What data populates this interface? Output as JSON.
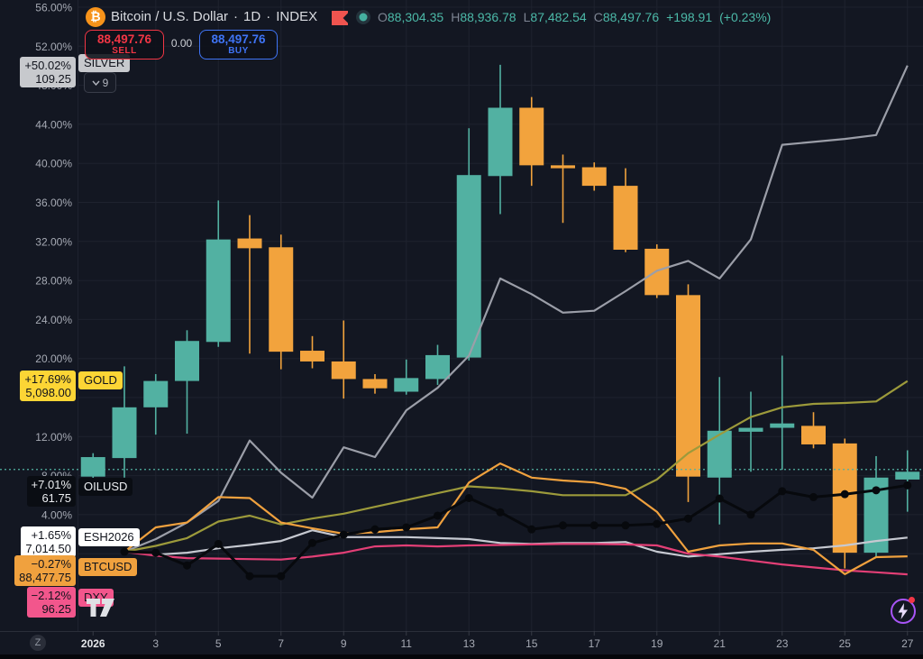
{
  "header": {
    "logo_glyph": "₿",
    "symbol_title": "Bitcoin / U.S. Dollar",
    "separator": "·",
    "interval": "1D",
    "exchange": "INDEX",
    "ohlc": [
      {
        "label": "O",
        "value": "88,304.35"
      },
      {
        "label": "H",
        "value": "88,936.78"
      },
      {
        "label": "L",
        "value": "87,482.54"
      },
      {
        "label": "C",
        "value": "88,497.76"
      }
    ],
    "change": "+198.91",
    "change_pct": "(+0.23%)"
  },
  "trade_panel": {
    "sell_price": "88,497.76",
    "sell_label": "SELL",
    "spread": "0.00",
    "buy_price": "88,497.76",
    "buy_label": "BUY"
  },
  "compare_selector": {
    "count": "9"
  },
  "badges": [
    {
      "ticker": "SILVER",
      "pct_text": "+50.02%",
      "value_text": "109.25",
      "color": "#c7c9cd",
      "text_color": "#10131c"
    },
    {
      "ticker": "GOLD",
      "pct_text": "+17.69%",
      "value_text": "5,098.00",
      "color": "#fcd535",
      "text_color": "#10131c"
    },
    {
      "ticker": "OILUSD",
      "pct_text": "+7.01%",
      "value_text": "61.75",
      "color": "#0a0d13",
      "text_color": "#eceef1"
    },
    {
      "ticker": "ESH2026",
      "pct_text": "+1.65%",
      "value_text": "7,014.50",
      "color": "#ffffff",
      "text_color": "#10131c"
    },
    {
      "ticker": "BTCUSD",
      "pct_text": "−0.27%",
      "value_text": "88,477.75",
      "color": "#f0a13e",
      "text_color": "#10131c"
    },
    {
      "ticker": "DXY",
      "pct_text": "−2.12%",
      "value_text": "96.25",
      "color": "#f2568c",
      "text_color": "#10131c"
    }
  ],
  "misc": {
    "zoom_reset": "Z"
  },
  "chart_data": {
    "type": "candlestick+lines",
    "title": "Bitcoin / U.S. Dollar, 1D, INDEX, percent scale",
    "colors": {
      "up": "#52b1a2",
      "down": "#f2a33d",
      "grid": "#1e222e",
      "axis_text": "#a6aab4",
      "axis_text_bold": "#e3e5e9",
      "price_line": "#52b1a2"
    },
    "y_axis": {
      "unit": "%",
      "min": -8,
      "max": 56.7,
      "labels": [
        {
          "p": 56,
          "t": "56.00%"
        },
        {
          "p": 52,
          "t": "52.00%"
        },
        {
          "p": 48,
          "t": "48.00%"
        },
        {
          "p": 44,
          "t": "44.00%"
        },
        {
          "p": 40,
          "t": "40.00%"
        },
        {
          "p": 36,
          "t": "36.00%"
        },
        {
          "p": 32,
          "t": "32.00%"
        },
        {
          "p": 28,
          "t": "28.00%"
        },
        {
          "p": 24,
          "t": "24.00%"
        },
        {
          "p": 20,
          "t": "20.00%"
        },
        {
          "p": 12,
          "t": "12.00%"
        },
        {
          "p": 8,
          "t": "8.00%"
        },
        {
          "p": 4,
          "t": "4.00%"
        }
      ]
    },
    "x_axis": {
      "labels": [
        {
          "d": 1,
          "t": "2026",
          "bold": true
        },
        {
          "d": 3,
          "t": "3"
        },
        {
          "d": 5,
          "t": "5"
        },
        {
          "d": 7,
          "t": "7"
        },
        {
          "d": 9,
          "t": "9"
        },
        {
          "d": 11,
          "t": "11"
        },
        {
          "d": 13,
          "t": "13"
        },
        {
          "d": 15,
          "t": "15"
        },
        {
          "d": 17,
          "t": "17"
        },
        {
          "d": 19,
          "t": "19"
        },
        {
          "d": 21,
          "t": "21"
        },
        {
          "d": 23,
          "t": "23"
        },
        {
          "d": 25,
          "t": "25"
        },
        {
          "d": 27,
          "t": "27"
        }
      ]
    },
    "grid": {
      "h_pct": [
        56,
        52,
        48,
        44,
        40,
        36,
        32,
        28,
        24,
        20,
        16,
        12,
        8,
        4,
        0,
        -4
      ],
      "v_days": [
        3,
        5,
        7,
        9,
        11,
        13,
        15,
        17,
        19,
        21,
        23,
        25,
        27
      ]
    },
    "price_line": {
      "pct": 8.63,
      "style": "dotted"
    },
    "candles": [
      {
        "d": 1,
        "o": 7.9,
        "h": 10.3,
        "l": 7.2,
        "c": 9.9
      },
      {
        "d": 2,
        "o": 9.8,
        "h": 19.2,
        "l": 7.8,
        "c": 15.0
      },
      {
        "d": 3,
        "o": 15.0,
        "h": 18.4,
        "l": 12.2,
        "c": 17.7
      },
      {
        "d": 4,
        "o": 17.7,
        "h": 22.9,
        "l": 12.3,
        "c": 21.8
      },
      {
        "d": 5,
        "o": 21.7,
        "h": 36.2,
        "l": 21.2,
        "c": 32.2
      },
      {
        "d": 6,
        "o": 32.3,
        "h": 34.7,
        "l": 20.5,
        "c": 31.3
      },
      {
        "d": 7,
        "o": 31.4,
        "h": 32.7,
        "l": 18.9,
        "c": 20.7
      },
      {
        "d": 8,
        "o": 20.8,
        "h": 22.3,
        "l": 19.0,
        "c": 19.7
      },
      {
        "d": 9,
        "o": 19.7,
        "h": 23.9,
        "l": 15.9,
        "c": 17.9
      },
      {
        "d": 10,
        "o": 17.9,
        "h": 18.4,
        "l": 16.4,
        "c": 16.95
      },
      {
        "d": 11,
        "o": 16.6,
        "h": 19.9,
        "l": 16.3,
        "c": 18.0
      },
      {
        "d": 12,
        "o": 17.9,
        "h": 21.4,
        "l": 17.3,
        "c": 20.35
      },
      {
        "d": 13,
        "o": 20.1,
        "h": 43.6,
        "l": 19.8,
        "c": 38.8
      },
      {
        "d": 14,
        "o": 38.7,
        "h": 50.1,
        "l": 34.8,
        "c": 45.7
      },
      {
        "d": 15,
        "o": 45.7,
        "h": 46.8,
        "l": 37.7,
        "c": 39.8
      },
      {
        "d": 16,
        "o": 39.8,
        "h": 40.9,
        "l": 33.9,
        "c": 39.5
      },
      {
        "d": 17,
        "o": 39.6,
        "h": 40.1,
        "l": 37.2,
        "c": 37.7
      },
      {
        "d": 18,
        "o": 37.7,
        "h": 39.5,
        "l": 30.9,
        "c": 31.15
      },
      {
        "d": 19,
        "o": 31.25,
        "h": 31.7,
        "l": 26.2,
        "c": 26.5
      },
      {
        "d": 20,
        "o": 26.5,
        "h": 27.6,
        "l": 5.3,
        "c": 7.9
      },
      {
        "d": 21,
        "o": 7.8,
        "h": 18.1,
        "l": 3.0,
        "c": 12.6
      },
      {
        "d": 22,
        "o": 12.5,
        "h": 16.6,
        "l": 8.4,
        "c": 12.9
      },
      {
        "d": 23,
        "o": 12.9,
        "h": 20.3,
        "l": 8.6,
        "c": 13.35
      },
      {
        "d": 24,
        "o": 13.1,
        "h": 14.5,
        "l": 10.8,
        "c": 11.2
      },
      {
        "d": 25,
        "o": 11.3,
        "h": 11.8,
        "l": -1.5,
        "c": 0.1
      },
      {
        "d": 26,
        "o": 0.1,
        "h": 10.0,
        "l": -0.3,
        "c": 7.8
      },
      {
        "d": 27,
        "o": 7.6,
        "h": 10.6,
        "l": 4.3,
        "c": 8.4
      }
    ],
    "series": [
      {
        "name": "SILVER",
        "color": "#9b9ea8",
        "markers": false,
        "values": [
          [
            2,
            0.2
          ],
          [
            3,
            1.5
          ],
          [
            4,
            3.2
          ],
          [
            5,
            5.4
          ],
          [
            6,
            11.6
          ],
          [
            7,
            8.3
          ],
          [
            8,
            5.75
          ],
          [
            9,
            10.9
          ],
          [
            10,
            9.9
          ],
          [
            11,
            14.7
          ],
          [
            12,
            17.0
          ],
          [
            13,
            20.3
          ],
          [
            14,
            28.2
          ],
          [
            15,
            26.6
          ],
          [
            16,
            24.7
          ],
          [
            17,
            24.9
          ],
          [
            18,
            26.9
          ],
          [
            19,
            29.0
          ],
          [
            20,
            30.0
          ],
          [
            21,
            28.2
          ],
          [
            22,
            32.2
          ],
          [
            23,
            41.9
          ],
          [
            24,
            42.2
          ],
          [
            25,
            42.5
          ],
          [
            26,
            42.9
          ],
          [
            27,
            50.02
          ]
        ]
      },
      {
        "name": "GOLD",
        "color": "#9c9a3b",
        "markers": false,
        "values": [
          [
            2,
            0.2
          ],
          [
            3,
            0.8
          ],
          [
            4,
            1.6
          ],
          [
            5,
            3.3
          ],
          [
            6,
            3.9
          ],
          [
            7,
            3.0
          ],
          [
            8,
            3.6
          ],
          [
            9,
            4.1
          ],
          [
            10,
            4.8
          ],
          [
            11,
            5.5
          ],
          [
            12,
            6.2
          ],
          [
            13,
            6.9
          ],
          [
            14,
            6.7
          ],
          [
            15,
            6.4
          ],
          [
            16,
            6.0
          ],
          [
            17,
            6.0
          ],
          [
            18,
            6.0
          ],
          [
            19,
            7.6
          ],
          [
            20,
            10.3
          ],
          [
            21,
            12.2
          ],
          [
            22,
            14.0
          ],
          [
            23,
            15.0
          ],
          [
            24,
            15.35
          ],
          [
            25,
            15.45
          ],
          [
            26,
            15.6
          ],
          [
            27,
            17.69
          ]
        ]
      },
      {
        "name": "ESH2026",
        "color": "#c6c9d1",
        "markers": false,
        "values": [
          [
            2,
            0.2
          ],
          [
            3,
            -0.1
          ],
          [
            4,
            0.1
          ],
          [
            5,
            0.55
          ],
          [
            6,
            0.9
          ],
          [
            7,
            1.3
          ],
          [
            8,
            2.4
          ],
          [
            9,
            1.7
          ],
          [
            10,
            1.7
          ],
          [
            11,
            1.7
          ],
          [
            12,
            1.6
          ],
          [
            13,
            1.5
          ],
          [
            14,
            1.1
          ],
          [
            15,
            1.0
          ],
          [
            16,
            1.1
          ],
          [
            17,
            1.1
          ],
          [
            18,
            1.2
          ],
          [
            19,
            0.2
          ],
          [
            20,
            -0.3
          ],
          [
            21,
            -0.05
          ],
          [
            22,
            0.2
          ],
          [
            23,
            0.4
          ],
          [
            24,
            0.55
          ],
          [
            25,
            0.85
          ],
          [
            26,
            1.3
          ],
          [
            27,
            1.65
          ]
        ]
      },
      {
        "name": "DXY",
        "color": "#e33f76",
        "markers": false,
        "values": [
          [
            2,
            0.2
          ],
          [
            3,
            -0.2
          ],
          [
            4,
            -0.45
          ],
          [
            5,
            -0.5
          ],
          [
            6,
            -0.55
          ],
          [
            7,
            -0.6
          ],
          [
            8,
            -0.3
          ],
          [
            9,
            0.1
          ],
          [
            10,
            0.75
          ],
          [
            11,
            0.85
          ],
          [
            12,
            0.75
          ],
          [
            13,
            0.85
          ],
          [
            14,
            0.9
          ],
          [
            15,
            0.95
          ],
          [
            16,
            1.0
          ],
          [
            17,
            1.0
          ],
          [
            18,
            0.95
          ],
          [
            19,
            0.85
          ],
          [
            20,
            0.0
          ],
          [
            21,
            -0.3
          ],
          [
            22,
            -0.7
          ],
          [
            23,
            -1.1
          ],
          [
            24,
            -1.4
          ],
          [
            25,
            -1.7
          ],
          [
            26,
            -1.9
          ],
          [
            27,
            -2.12
          ]
        ]
      },
      {
        "name": "BTCUSD",
        "color": "#f0a13e",
        "markers": false,
        "values": [
          [
            2,
            0.2
          ],
          [
            3,
            2.7
          ],
          [
            4,
            3.2
          ],
          [
            5,
            5.8
          ],
          [
            6,
            5.7
          ],
          [
            7,
            3.2
          ],
          [
            8,
            2.6
          ],
          [
            9,
            2.05
          ],
          [
            10,
            2.2
          ],
          [
            11,
            2.5
          ],
          [
            12,
            2.7
          ],
          [
            13,
            7.3
          ],
          [
            14,
            9.25
          ],
          [
            15,
            7.8
          ],
          [
            16,
            7.5
          ],
          [
            17,
            7.3
          ],
          [
            18,
            6.65
          ],
          [
            19,
            4.3
          ],
          [
            20,
            0.2
          ],
          [
            21,
            0.85
          ],
          [
            22,
            1.05
          ],
          [
            23,
            1.05
          ],
          [
            24,
            0.4
          ],
          [
            25,
            -2.1
          ],
          [
            26,
            -0.35
          ],
          [
            27,
            -0.27
          ]
        ]
      },
      {
        "name": "OILUSD",
        "color": "#07090d",
        "markers": true,
        "values": [
          [
            2,
            0.2
          ],
          [
            3,
            0.1
          ],
          [
            4,
            -1.2
          ],
          [
            5,
            1.0
          ],
          [
            6,
            -2.3
          ],
          [
            7,
            -2.3
          ],
          [
            8,
            1.1
          ],
          [
            9,
            1.95
          ],
          [
            10,
            2.5
          ],
          [
            11,
            2.7
          ],
          [
            12,
            3.9
          ],
          [
            13,
            5.7
          ],
          [
            14,
            4.25
          ],
          [
            15,
            2.5
          ],
          [
            16,
            2.9
          ],
          [
            17,
            2.9
          ],
          [
            18,
            2.9
          ],
          [
            19,
            3.05
          ],
          [
            20,
            3.6
          ],
          [
            21,
            5.65
          ],
          [
            22,
            4.0
          ],
          [
            23,
            6.4
          ],
          [
            24,
            5.8
          ],
          [
            25,
            6.1
          ],
          [
            26,
            6.5
          ],
          [
            27,
            7.01
          ]
        ]
      }
    ]
  }
}
